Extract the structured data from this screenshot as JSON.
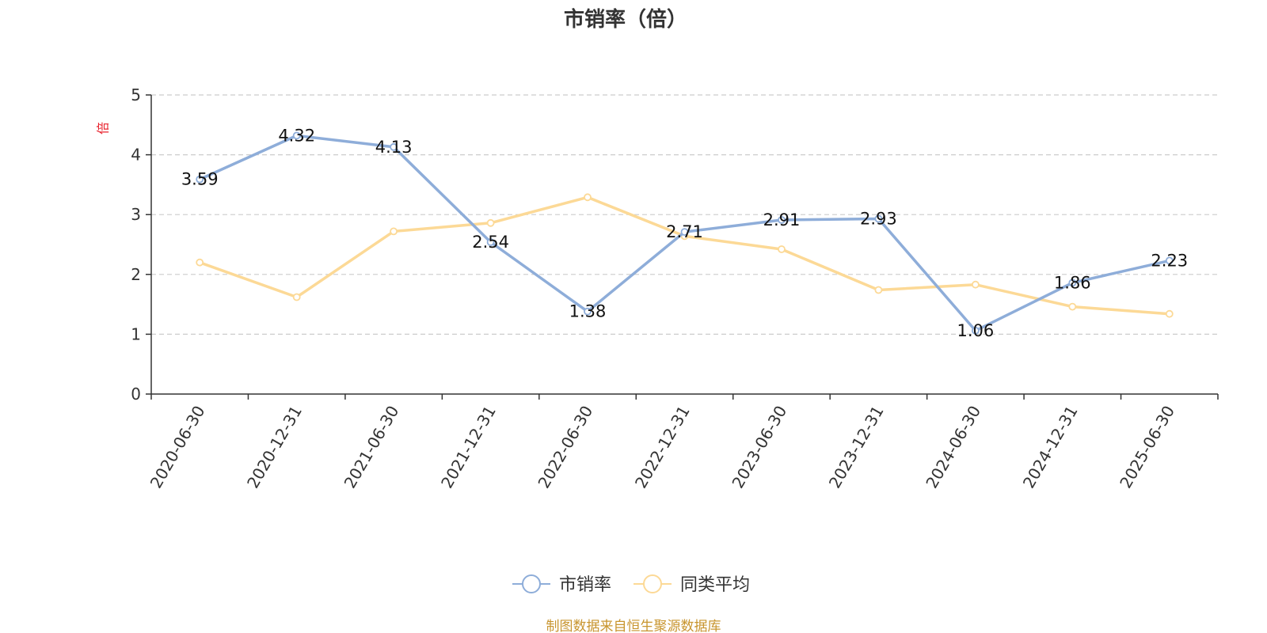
{
  "chart_data": {
    "type": "line",
    "title": "市销率（倍）",
    "ylabel": "倍",
    "xlabel": "",
    "categories": [
      "2020-06-30",
      "2020-12-31",
      "2021-06-30",
      "2021-12-31",
      "2022-06-30",
      "2022-12-31",
      "2023-06-30",
      "2023-12-31",
      "2024-06-30",
      "2024-12-31",
      "2025-06-30"
    ],
    "ylim": [
      0,
      5
    ],
    "yticks": [
      "0",
      "1",
      "2",
      "3",
      "4",
      "5"
    ],
    "grid": true,
    "legend_position": "bottom-center",
    "series": [
      {
        "name": "市销率",
        "color": "#8eadd9",
        "values": [
          3.59,
          4.32,
          4.13,
          2.54,
          1.38,
          2.71,
          2.91,
          2.93,
          1.06,
          1.86,
          2.23
        ],
        "labels": [
          "3.59",
          "4.32",
          "4.13",
          "2.54",
          "1.38",
          "2.71",
          "2.91",
          "2.93",
          "1.06",
          "1.86",
          "2.23"
        ]
      },
      {
        "name": "同类平均",
        "color": "#fcd996",
        "values": [
          2.2,
          1.62,
          2.72,
          2.86,
          3.29,
          2.64,
          2.42,
          1.74,
          1.83,
          1.46,
          1.34
        ]
      }
    ]
  },
  "source": "制图数据来自恒生聚源数据库",
  "colors": {
    "unit_label": "#e8222d",
    "source": "#c8952f",
    "axis": "#333333",
    "grid": "#cccccc"
  }
}
